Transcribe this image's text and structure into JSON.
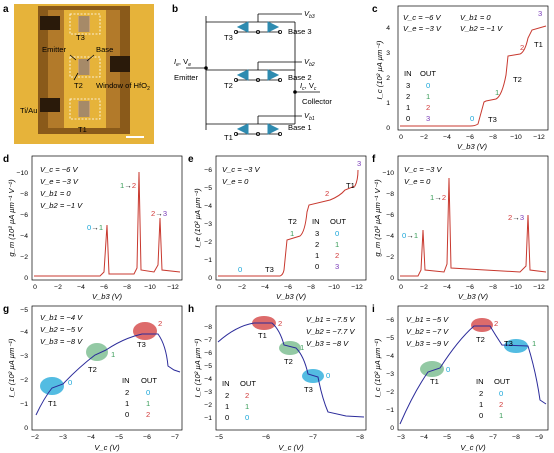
{
  "colors": {
    "red": "#d23a3a",
    "blue": "#1aa6d8",
    "green": "#3a9d5a",
    "purple": "#7a3cb8",
    "curve": "#c8392f",
    "navy": "#2b2b9a",
    "gold": "#e6b33a",
    "brown": "#8a5a1a",
    "chip": "#2a1a0a"
  },
  "panels": {
    "a": "a",
    "b": "b",
    "c": "c",
    "d": "d",
    "e": "e",
    "f": "f",
    "g": "g",
    "h": "h",
    "i": "i"
  },
  "a": {
    "t3": "T3",
    "t2": "T2",
    "t1": "T1",
    "emitter": "Emitter",
    "base": "Base",
    "window": "Window of HfO",
    "window_sub": "2",
    "tiau": "Ti/Au"
  },
  "b": {
    "emitter": "Emitter",
    "collector": "Collector",
    "ie_ve": "I",
    "ie_sub": "e",
    "ve": ", V",
    "ve_sub": "e",
    "ic": "I",
    "ic_sub": "c",
    "vc": ", V",
    "vc_sub": "c",
    "t3": "T3",
    "t2": "T2",
    "t1": "T1",
    "vb3": "V",
    "vb3_sub": "b3",
    "base3": "Base 3",
    "vb2": "V",
    "vb2_sub": "b2",
    "base2": "Base 2",
    "vb1": "V",
    "vb1_sub": "b1",
    "base1": "Base 1"
  },
  "c": {
    "cond": [
      "V_c = −6 V",
      "V_b1 = 0",
      "V_e = −3 V",
      "V_b2 = −1 V"
    ],
    "ylabel": "I_c (10² µA µm⁻¹)",
    "xlabel": "V_b3 (V)",
    "xticks": [
      "0",
      "−2",
      "−4",
      "−6",
      "−8",
      "−10",
      "−12"
    ],
    "yticks": [
      "0",
      "1",
      "2",
      "3",
      "4"
    ],
    "table": {
      "h1": "IN",
      "h2": "OUT",
      "rows": [
        [
          "3",
          "0"
        ],
        [
          "2",
          "1"
        ],
        [
          "1",
          "2"
        ],
        [
          "0",
          "3"
        ]
      ]
    },
    "steps": [
      "0",
      "1",
      "2",
      "3"
    ],
    "tlabels": [
      "T3",
      "T2",
      "T1"
    ]
  },
  "d": {
    "cond": [
      "V_c = −6 V",
      "V_e = −3 V",
      "V_b1 = 0",
      "V_b2 = −1 V"
    ],
    "ylabel": "g_m (10² µA µm⁻¹ V⁻¹)",
    "xlabel": "V_b3 (V)",
    "xticks": [
      "0",
      "−2",
      "−4",
      "−6",
      "−8",
      "−10",
      "−12"
    ],
    "yticks": [
      "0",
      "−2",
      "−4",
      "−6",
      "−8",
      "−10"
    ],
    "ann": [
      [
        "0",
        "→",
        "1"
      ],
      [
        "1",
        "→",
        "2"
      ],
      [
        "2",
        "→",
        "3"
      ]
    ]
  },
  "e": {
    "cond": [
      "V_c = −3 V",
      "V_e = 0"
    ],
    "ylabel": "I_e (10² µA µm⁻¹)",
    "xlabel": "V_b3 (V)",
    "xticks": [
      "0",
      "−2",
      "−4",
      "−6",
      "−8",
      "−10",
      "−12"
    ],
    "yticks": [
      "0",
      "−1",
      "−2",
      "−3",
      "−4",
      "−5",
      "−6"
    ],
    "table": {
      "h1": "IN",
      "h2": "OUT",
      "rows": [
        [
          "3",
          "0"
        ],
        [
          "2",
          "1"
        ],
        [
          "1",
          "2"
        ],
        [
          "0",
          "3"
        ]
      ]
    },
    "steps": [
      "0",
      "1",
      "2",
      "3"
    ],
    "tlabels": [
      "T3",
      "T2",
      "T1"
    ]
  },
  "f": {
    "cond": [
      "V_c = −3 V",
      "V_e = 0"
    ],
    "ylabel": "g_m (10² µA µm⁻¹ V⁻¹)",
    "xlabel": "V_b3 (V)",
    "xticks": [
      "0",
      "−2",
      "−4",
      "−6",
      "−8",
      "−10",
      "−12"
    ],
    "yticks": [
      "0",
      "−2",
      "−4",
      "−6",
      "−8",
      "−10"
    ],
    "ann": [
      [
        "0",
        "→",
        "1"
      ],
      [
        "1",
        "→",
        "2"
      ],
      [
        "2",
        "→",
        "3"
      ]
    ]
  },
  "g": {
    "cond": [
      "V_b1 = −4 V",
      "V_b2 = −5 V",
      "V_b3 = −8 V"
    ],
    "ylabel": "I_c (10² µA µm⁻¹)",
    "xlabel": "V_c (V)",
    "xticks": [
      "−2",
      "−3",
      "−4",
      "−5",
      "−6",
      "−7"
    ],
    "yticks": [
      "0",
      "−1",
      "−2",
      "−3",
      "−4",
      "−5"
    ],
    "table": {
      "h1": "IN",
      "h2": "OUT",
      "rows": [
        [
          "2",
          "0"
        ],
        [
          "1",
          "1"
        ],
        [
          "0",
          "2"
        ]
      ]
    },
    "tlabels": [
      "T1",
      "T2",
      "T3"
    ],
    "nums": [
      "0",
      "1",
      "2"
    ]
  },
  "h": {
    "cond": [
      "V_b1 = −7.5 V",
      "V_b2 = −7.7 V",
      "V_b3 = −8 V"
    ],
    "ylabel": "I_c (10² µA µm⁻¹)",
    "xlabel": "V_c (V)",
    "xticks": [
      "−5",
      "−6",
      "−7",
      "−8"
    ],
    "yticks": [
      "0",
      "−1",
      "−2",
      "−3",
      "−4",
      "−5",
      "−6",
      "−7",
      "−8"
    ],
    "table": {
      "h1": "IN",
      "h2": "OUT",
      "rows": [
        [
          "2",
          "2"
        ],
        [
          "1",
          "1"
        ],
        [
          "0",
          "0"
        ]
      ]
    },
    "tlabels": [
      "T1",
      "T2",
      "T3"
    ],
    "nums": [
      "2",
      "1",
      "0"
    ]
  },
  "i": {
    "cond": [
      "V_b1 = −5 V",
      "V_b2 = −7 V",
      "V_b3 = −9 V"
    ],
    "ylabel": "I_c (10² µA µm⁻¹)",
    "xlabel": "V_c (V)",
    "xticks": [
      "−3",
      "−4",
      "−5",
      "−6",
      "−7",
      "−8",
      "−9"
    ],
    "yticks": [
      "0",
      "−1",
      "−2",
      "−3",
      "−4",
      "−5",
      "−6"
    ],
    "table": {
      "h1": "IN",
      "h2": "OUT",
      "rows": [
        [
          "2",
          "0"
        ],
        [
          "1",
          "2"
        ],
        [
          "0",
          "1"
        ]
      ]
    },
    "tlabels": [
      "T1",
      "T2",
      "T3"
    ],
    "nums": [
      "0",
      "2",
      "1"
    ]
  }
}
